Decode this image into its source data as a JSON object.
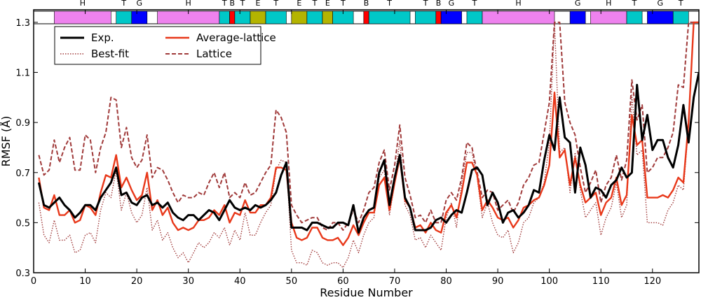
{
  "chart_data": {
    "type": "line",
    "xlabel": "Residue Number",
    "ylabel": "RMSF (Å)",
    "xlim": [
      0,
      129
    ],
    "ylim": [
      0.3,
      1.35
    ],
    "xticks": [
      0,
      10,
      20,
      30,
      40,
      50,
      60,
      70,
      80,
      90,
      100,
      110,
      120
    ],
    "yticks": [
      0.3,
      0.5,
      0.7,
      0.9,
      1.1,
      1.3
    ],
    "legend_location": "upper-left",
    "x": [
      1,
      2,
      3,
      4,
      5,
      6,
      7,
      8,
      9,
      10,
      11,
      12,
      13,
      14,
      15,
      16,
      17,
      18,
      19,
      20,
      21,
      22,
      23,
      24,
      25,
      26,
      27,
      28,
      29,
      30,
      31,
      32,
      33,
      34,
      35,
      36,
      37,
      38,
      39,
      40,
      41,
      42,
      43,
      44,
      45,
      46,
      47,
      48,
      49,
      50,
      51,
      52,
      53,
      54,
      55,
      56,
      57,
      58,
      59,
      60,
      61,
      62,
      63,
      64,
      65,
      66,
      67,
      68,
      69,
      70,
      71,
      72,
      73,
      74,
      75,
      76,
      77,
      78,
      79,
      80,
      81,
      82,
      83,
      84,
      85,
      86,
      87,
      88,
      89,
      90,
      91,
      92,
      93,
      94,
      95,
      96,
      97,
      98,
      99,
      100,
      101,
      102,
      103,
      104,
      105,
      106,
      107,
      108,
      109,
      110,
      111,
      112,
      113,
      114,
      115,
      116,
      117,
      118,
      119,
      120,
      121,
      122,
      123,
      124,
      125,
      126,
      127,
      128,
      129
    ],
    "series": [
      {
        "name": "Exp.",
        "color": "#000000",
        "style": "solid",
        "width": 3,
        "values": [
          0.66,
          0.57,
          0.56,
          0.58,
          0.6,
          0.57,
          0.55,
          0.52,
          0.54,
          0.57,
          0.57,
          0.55,
          0.6,
          0.63,
          0.66,
          0.72,
          0.61,
          0.62,
          0.58,
          0.57,
          0.6,
          0.61,
          0.57,
          0.58,
          0.56,
          0.58,
          0.54,
          0.52,
          0.51,
          0.53,
          0.53,
          0.51,
          0.53,
          0.55,
          0.54,
          0.51,
          0.55,
          0.59,
          0.56,
          0.55,
          0.56,
          0.55,
          0.57,
          0.56,
          0.57,
          0.59,
          0.62,
          0.69,
          0.74,
          0.48,
          0.48,
          0.48,
          0.47,
          0.5,
          0.5,
          0.49,
          0.48,
          0.48,
          0.5,
          0.5,
          0.49,
          0.57,
          0.46,
          0.52,
          0.55,
          0.56,
          0.7,
          0.75,
          0.57,
          0.68,
          0.77,
          0.6,
          0.56,
          0.47,
          0.47,
          0.47,
          0.48,
          0.51,
          0.52,
          0.5,
          0.53,
          0.55,
          0.54,
          0.62,
          0.71,
          0.72,
          0.69,
          0.57,
          0.62,
          0.58,
          0.5,
          0.54,
          0.55,
          0.52,
          0.54,
          0.57,
          0.63,
          0.62,
          0.75,
          0.85,
          0.79,
          1.0,
          0.84,
          0.82,
          0.62,
          0.8,
          0.73,
          0.6,
          0.64,
          0.63,
          0.6,
          0.65,
          0.67,
          0.72,
          0.68,
          0.7,
          1.05,
          0.83,
          0.93,
          0.79,
          0.83,
          0.83,
          0.76,
          0.72,
          0.81,
          0.97,
          0.82,
          1.0,
          1.1
        ]
      },
      {
        "name": "Average-lattice",
        "color": "#e8381a",
        "style": "solid",
        "width": 2.4,
        "values": [
          0.68,
          0.56,
          0.55,
          0.61,
          0.53,
          0.53,
          0.55,
          0.5,
          0.51,
          0.57,
          0.56,
          0.53,
          0.62,
          0.69,
          0.68,
          0.77,
          0.64,
          0.68,
          0.63,
          0.59,
          0.61,
          0.7,
          0.55,
          0.59,
          0.53,
          0.56,
          0.5,
          0.47,
          0.48,
          0.47,
          0.48,
          0.51,
          0.51,
          0.52,
          0.55,
          0.53,
          0.57,
          0.5,
          0.54,
          0.53,
          0.59,
          0.54,
          0.54,
          0.57,
          0.57,
          0.6,
          0.72,
          0.72,
          0.71,
          0.5,
          0.44,
          0.43,
          0.44,
          0.48,
          0.48,
          0.44,
          0.43,
          0.43,
          0.44,
          0.41,
          0.44,
          0.49,
          0.45,
          0.5,
          0.54,
          0.54,
          0.65,
          0.68,
          0.55,
          0.66,
          0.76,
          0.59,
          0.56,
          0.48,
          0.49,
          0.46,
          0.5,
          0.47,
          0.46,
          0.54,
          0.57,
          0.52,
          0.62,
          0.74,
          0.74,
          0.69,
          0.55,
          0.59,
          0.56,
          0.52,
          0.51,
          0.52,
          0.48,
          0.51,
          0.56,
          0.57,
          0.59,
          0.6,
          0.65,
          0.73,
          1.02,
          0.76,
          0.79,
          0.65,
          0.76,
          0.65,
          0.58,
          0.6,
          0.62,
          0.53,
          0.58,
          0.6,
          0.68,
          0.57,
          0.61,
          0.93,
          0.81,
          0.83,
          0.6,
          0.6,
          0.6,
          0.61,
          0.6,
          0.63,
          0.68,
          0.66,
          0.9,
          1.3,
          1.3
        ]
      },
      {
        "name": "Best-fit",
        "color": "#a03a3a",
        "style": "dotted",
        "width": 1.4,
        "values": [
          0.58,
          0.45,
          0.42,
          0.51,
          0.43,
          0.43,
          0.45,
          0.38,
          0.39,
          0.45,
          0.46,
          0.42,
          0.55,
          0.62,
          0.6,
          0.71,
          0.55,
          0.62,
          0.54,
          0.5,
          0.53,
          0.64,
          0.47,
          0.51,
          0.43,
          0.46,
          0.4,
          0.36,
          0.38,
          0.34,
          0.38,
          0.42,
          0.4,
          0.42,
          0.46,
          0.44,
          0.48,
          0.41,
          0.47,
          0.43,
          0.54,
          0.45,
          0.45,
          0.5,
          0.54,
          0.57,
          0.71,
          0.75,
          0.74,
          0.39,
          0.34,
          0.34,
          0.33,
          0.39,
          0.38,
          0.34,
          0.33,
          0.34,
          0.34,
          0.32,
          0.36,
          0.43,
          0.38,
          0.45,
          0.5,
          0.52,
          0.68,
          0.71,
          0.53,
          0.66,
          0.83,
          0.57,
          0.53,
          0.43,
          0.44,
          0.4,
          0.45,
          0.42,
          0.39,
          0.52,
          0.58,
          0.48,
          0.66,
          0.78,
          0.78,
          0.68,
          0.52,
          0.58,
          0.5,
          0.45,
          0.44,
          0.47,
          0.38,
          0.42,
          0.5,
          0.52,
          0.58,
          0.6,
          0.66,
          0.82,
          1.3,
          0.78,
          0.8,
          0.62,
          0.78,
          0.63,
          0.52,
          0.55,
          0.58,
          0.45,
          0.52,
          0.56,
          0.66,
          0.52,
          0.57,
          1.01,
          0.77,
          0.79,
          0.5,
          0.5,
          0.5,
          0.49,
          0.55,
          0.58,
          0.65,
          0.63,
          0.89,
          1.3,
          1.3
        ]
      },
      {
        "name": "Lattice",
        "color": "#a03a3a",
        "style": "dashed",
        "width": 2,
        "values": [
          0.77,
          0.69,
          0.71,
          0.83,
          0.74,
          0.8,
          0.84,
          0.71,
          0.71,
          0.85,
          0.83,
          0.7,
          0.8,
          0.86,
          1.0,
          0.99,
          0.8,
          0.88,
          0.76,
          0.72,
          0.75,
          0.85,
          0.68,
          0.72,
          0.71,
          0.67,
          0.62,
          0.58,
          0.61,
          0.6,
          0.6,
          0.62,
          0.61,
          0.66,
          0.7,
          0.64,
          0.7,
          0.6,
          0.62,
          0.6,
          0.66,
          0.61,
          0.62,
          0.66,
          0.7,
          0.73,
          0.95,
          0.92,
          0.86,
          0.57,
          0.53,
          0.5,
          0.51,
          0.52,
          0.52,
          0.48,
          0.47,
          0.5,
          0.5,
          0.47,
          0.5,
          0.55,
          0.5,
          0.55,
          0.62,
          0.64,
          0.74,
          0.79,
          0.63,
          0.73,
          0.89,
          0.68,
          0.61,
          0.52,
          0.53,
          0.5,
          0.55,
          0.5,
          0.5,
          0.59,
          0.62,
          0.59,
          0.68,
          0.82,
          0.8,
          0.7,
          0.6,
          0.63,
          0.62,
          0.55,
          0.57,
          0.59,
          0.54,
          0.58,
          0.65,
          0.68,
          0.73,
          0.74,
          0.86,
          0.98,
          1.3,
          1.3,
          0.98,
          0.9,
          0.85,
          0.72,
          0.62,
          0.66,
          0.71,
          0.58,
          0.65,
          0.68,
          0.77,
          0.67,
          0.75,
          1.07,
          0.91,
          0.97,
          0.7,
          0.72,
          0.76,
          0.76,
          0.8,
          0.86,
          1.05,
          1.04,
          1.3,
          1.3,
          1.3
        ]
      }
    ],
    "secondary_structure": [
      {
        "label": "H",
        "start": 4,
        "end": 15,
        "color": "#ee82ee"
      },
      {
        "label": "T",
        "start": 16,
        "end": 19,
        "color": "#00c8c8"
      },
      {
        "label": "G",
        "start": 19,
        "end": 22,
        "color": "#0000ff"
      },
      {
        "label": "H",
        "start": 24,
        "end": 36,
        "color": "#ee82ee"
      },
      {
        "label": "T",
        "start": 36,
        "end": 38,
        "color": "#00c8c8"
      },
      {
        "label": "B",
        "start": 38,
        "end": 39,
        "color": "#ff0000"
      },
      {
        "label": "T",
        "start": 39,
        "end": 42,
        "color": "#00c8c8"
      },
      {
        "label": "E",
        "start": 42,
        "end": 45,
        "color": "#b4b400"
      },
      {
        "label": "T",
        "start": 45,
        "end": 49,
        "color": "#00c8c8"
      },
      {
        "label": "E",
        "start": 50,
        "end": 53,
        "color": "#b4b400"
      },
      {
        "label": "T",
        "start": 53,
        "end": 56,
        "color": "#00c8c8"
      },
      {
        "label": "E",
        "start": 56,
        "end": 58,
        "color": "#b4b400"
      },
      {
        "label": "T",
        "start": 58,
        "end": 62,
        "color": "#00c8c8"
      },
      {
        "label": "B",
        "start": 64,
        "end": 65,
        "color": "#ff0000"
      },
      {
        "label": "T",
        "start": 65,
        "end": 73,
        "color": "#00c8c8"
      },
      {
        "label": "T",
        "start": 74,
        "end": 78,
        "color": "#00c8c8"
      },
      {
        "label": "B",
        "start": 78,
        "end": 79,
        "color": "#ff0000"
      },
      {
        "label": "G",
        "start": 79,
        "end": 83,
        "color": "#0000ff"
      },
      {
        "label": "T",
        "start": 84,
        "end": 87,
        "color": "#00c8c8"
      },
      {
        "label": "H",
        "start": 87,
        "end": 101,
        "color": "#ee82ee"
      },
      {
        "label": "G",
        "start": 104,
        "end": 107,
        "color": "#0000ff"
      },
      {
        "label": "H",
        "start": 108,
        "end": 115,
        "color": "#ee82ee"
      },
      {
        "label": "T",
        "start": 115,
        "end": 118,
        "color": "#00c8c8"
      },
      {
        "label": "G",
        "start": 119,
        "end": 124,
        "color": "#0000ff"
      },
      {
        "label": "T",
        "start": 124,
        "end": 127,
        "color": "#00c8c8"
      }
    ]
  }
}
